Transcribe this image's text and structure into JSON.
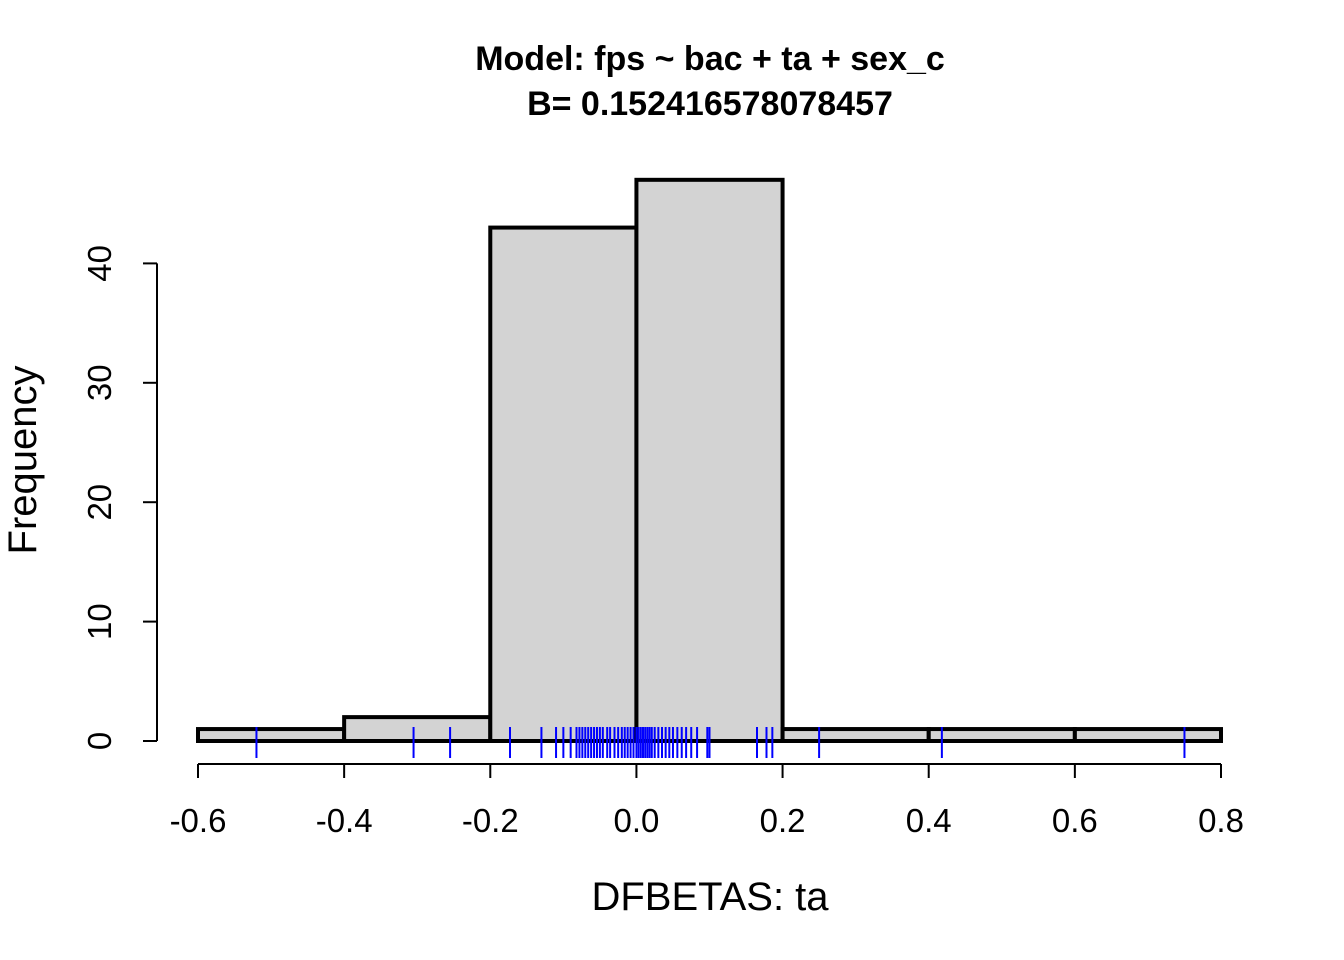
{
  "chart_data": {
    "type": "bar",
    "subtype": "histogram",
    "title": "Model: fps ~ bac + ta + sex_c",
    "subtitle": "B= 0.152416578078457",
    "xlabel": "DFBETAS: ta",
    "ylabel": "Frequency",
    "bins": [
      {
        "from": -0.6,
        "to": -0.4,
        "count": 1
      },
      {
        "from": -0.4,
        "to": -0.2,
        "count": 2
      },
      {
        "from": -0.2,
        "to": 0.0,
        "count": 43
      },
      {
        "from": 0.0,
        "to": 0.2,
        "count": 47
      },
      {
        "from": 0.2,
        "to": 0.4,
        "count": 1
      },
      {
        "from": 0.4,
        "to": 0.6,
        "count": 1
      },
      {
        "from": 0.6,
        "to": 0.8,
        "count": 1
      }
    ],
    "xlim": [
      -0.6,
      0.8
    ],
    "ylim": [
      0,
      47
    ],
    "x_ticks": [
      "-0.6",
      "-0.4",
      "-0.2",
      "0.0",
      "0.2",
      "0.4",
      "0.6",
      "0.8"
    ],
    "y_ticks": [
      "0",
      "10",
      "20",
      "30",
      "40"
    ],
    "rug": [
      -0.52,
      -0.305,
      -0.255,
      -0.173,
      -0.13,
      -0.11,
      -0.1,
      -0.09,
      -0.082,
      -0.078,
      -0.074,
      -0.07,
      -0.066,
      -0.062,
      -0.058,
      -0.054,
      -0.05,
      -0.046,
      -0.04,
      -0.036,
      -0.03,
      -0.025,
      -0.02,
      -0.016,
      -0.012,
      -0.008,
      -0.004,
      0.0,
      0.003,
      0.006,
      0.009,
      0.012,
      0.015,
      0.018,
      0.021,
      0.025,
      0.03,
      0.035,
      0.04,
      0.045,
      0.05,
      0.056,
      0.062,
      0.068,
      0.075,
      0.083,
      0.097,
      0.1,
      0.165,
      0.178,
      0.186,
      0.25,
      0.418,
      0.75
    ],
    "colors": {
      "bar_fill": "#d3d3d3",
      "bar_stroke": "#000000",
      "rug": "#0000ff"
    },
    "grid": false,
    "legend": "none"
  }
}
